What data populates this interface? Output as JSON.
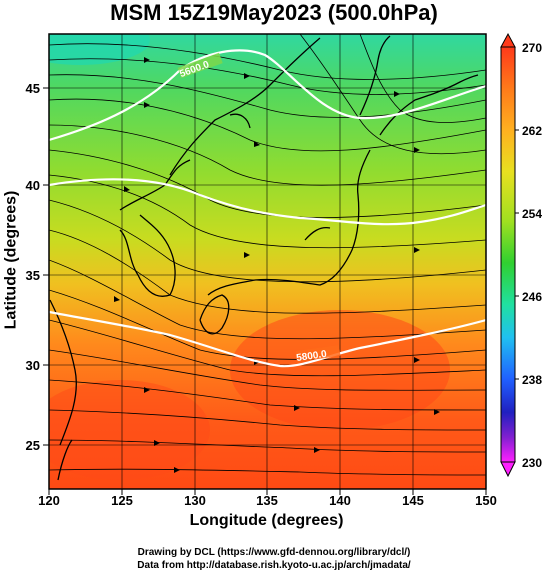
{
  "title": "MSM 15Z19May2023 (500.0hPa)",
  "map": {
    "xlabel": "Longitude (degrees)",
    "ylabel": "Latitude  (degrees)",
    "x_ticks": [
      "120",
      "125",
      "130",
      "135",
      "140",
      "145",
      "150"
    ],
    "y_ticks": [
      "25",
      "30",
      "35",
      "40",
      "45"
    ],
    "lon_range": [
      120,
      150
    ],
    "lat_range": [
      22.4,
      47.6
    ],
    "contours": [
      {
        "label": "5600.0"
      },
      {
        "label": "5800.0"
      }
    ],
    "field": "temperature-shaded with wind streamlines"
  },
  "colorbar": {
    "ticks": [
      "270",
      "262",
      "254",
      "246",
      "238",
      "230"
    ],
    "range": [
      230,
      270
    ],
    "colors": [
      "#ff3a1a",
      "#ff7a1a",
      "#ffb020",
      "#e8e020",
      "#a0e020",
      "#30d030",
      "#20e0a0",
      "#20c0f0",
      "#2060ff",
      "#2020c0",
      "#8020d0",
      "#ff20ff"
    ]
  },
  "credits": {
    "line1": "Drawing by DCL (https://www.gfd-dennou.org/library/dcl/)",
    "line2": "Data from http://database.rish.kyoto-u.ac.jp/arch/jmadata/"
  }
}
